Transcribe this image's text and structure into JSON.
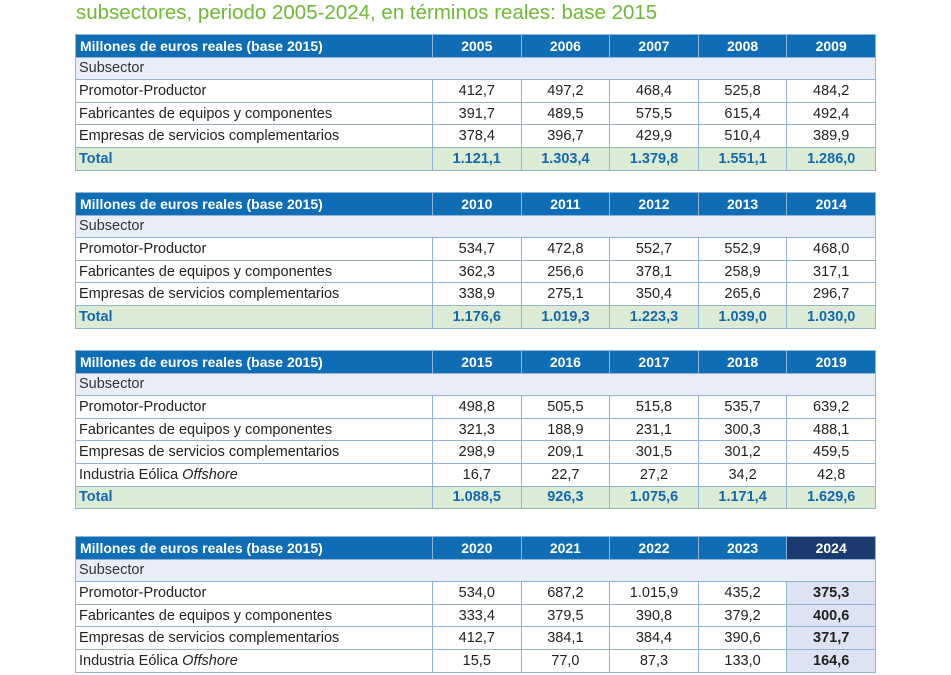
{
  "title": "subsectores, periodo 2005-2024, en términos reales: base 2015",
  "header_label": "Millones de euros reales (base 2015)",
  "subsector_label": "Subsector",
  "rows": {
    "promotor": "Promotor-Productor",
    "fabricantes": "Fabricantes de equipos y componentes",
    "empresas": "Empresas de servicios complementarios",
    "offshore_prefix": "Industria Eólica",
    "offshore_italic": "Offshore",
    "total": "Total"
  },
  "tables": [
    {
      "years": [
        "2005",
        "2006",
        "2007",
        "2008",
        "2009"
      ],
      "promotor": [
        "412,7",
        "497,2",
        "468,4",
        "525,8",
        "484,2"
      ],
      "fabricantes": [
        "391,7",
        "489,5",
        "575,5",
        "615,4",
        "492,4"
      ],
      "empresas": [
        "378,4",
        "396,7",
        "429,9",
        "510,4",
        "389,9"
      ],
      "total": [
        "1.121,1",
        "1.303,4",
        "1.379,8",
        "1.551,1",
        "1.286,0"
      ]
    },
    {
      "years": [
        "2010",
        "2011",
        "2012",
        "2013",
        "2014"
      ],
      "promotor": [
        "534,7",
        "472,8",
        "552,7",
        "552,9",
        "468,0"
      ],
      "fabricantes": [
        "362,3",
        "256,6",
        "378,1",
        "258,9",
        "317,1"
      ],
      "empresas": [
        "338,9",
        "275,1",
        "350,4",
        "265,6",
        "296,7"
      ],
      "total": [
        "1.176,6",
        "1.019,3",
        "1.223,3",
        "1.039,0",
        "1.030,0"
      ]
    },
    {
      "years": [
        "2015",
        "2016",
        "2017",
        "2018",
        "2019"
      ],
      "promotor": [
        "498,8",
        "505,5",
        "515,8",
        "535,7",
        "639,2"
      ],
      "fabricantes": [
        "321,3",
        "188,9",
        "231,1",
        "300,3",
        "488,1"
      ],
      "empresas": [
        "298,9",
        "209,1",
        "301,5",
        "301,2",
        "459,5"
      ],
      "offshore": [
        "16,7",
        "22,7",
        "27,2",
        "34,2",
        "42,8"
      ],
      "total": [
        "1.088,5",
        "926,3",
        "1.075,6",
        "1.171,4",
        "1.629,6"
      ]
    },
    {
      "years": [
        "2020",
        "2021",
        "2022",
        "2023",
        "2024"
      ],
      "promotor": [
        "534,0",
        "687,2",
        "1.015,9",
        "435,2",
        "375,3"
      ],
      "fabricantes": [
        "333,4",
        "379,5",
        "390,8",
        "379,2",
        "400,6"
      ],
      "empresas": [
        "412,7",
        "384,1",
        "384,4",
        "390,6",
        "371,7"
      ],
      "offshore": [
        "15,5",
        "77,0",
        "87,3",
        "133,0",
        "164,6"
      ]
    }
  ]
}
